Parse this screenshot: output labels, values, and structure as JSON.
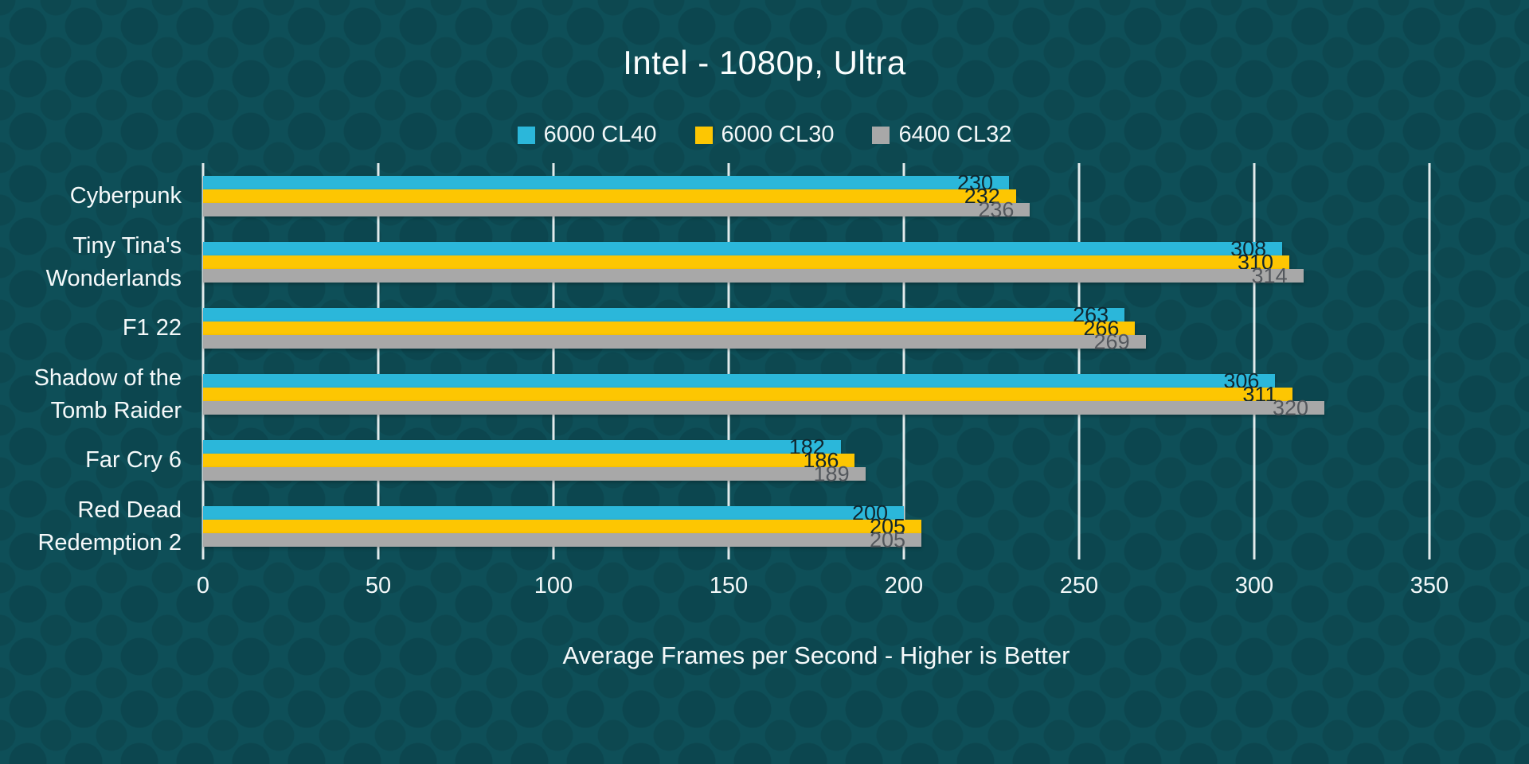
{
  "title": "Intel - 1080p, Ultra",
  "chart_data": {
    "type": "bar",
    "orientation": "horizontal",
    "title": "Intel - 1080p, Ultra",
    "xlabel": "Average Frames per Second - Higher is Better",
    "xlim": [
      0,
      350
    ],
    "xticks": [
      0,
      50,
      100,
      150,
      200,
      250,
      300,
      350
    ],
    "grid": true,
    "legend_position": "top-center",
    "categories": [
      "Cyberpunk",
      "Tiny Tina's Wonderlands",
      "F1 22",
      "Shadow of the Tomb Raider",
      "Far Cry 6",
      "Red Dead Redemption 2"
    ],
    "series": [
      {
        "name": "6000 CL40",
        "color": "#2bb7da",
        "label_color": "#10262e",
        "values": [
          230,
          308,
          263,
          306,
          182,
          200
        ]
      },
      {
        "name": "6000 CL30",
        "color": "#fdc602",
        "label_color": "#10262e",
        "values": [
          232,
          310,
          266,
          311,
          186,
          205
        ]
      },
      {
        "name": "6400 CL32",
        "color": "#a8a8a8",
        "label_color": "#54585d",
        "values": [
          236,
          314,
          269,
          320,
          189,
          205
        ]
      }
    ]
  },
  "theme": {
    "background": "#0e4f58",
    "dot_pattern": "#0a434c",
    "text": "#f5f9fa",
    "gridline": "#e2ebec"
  }
}
